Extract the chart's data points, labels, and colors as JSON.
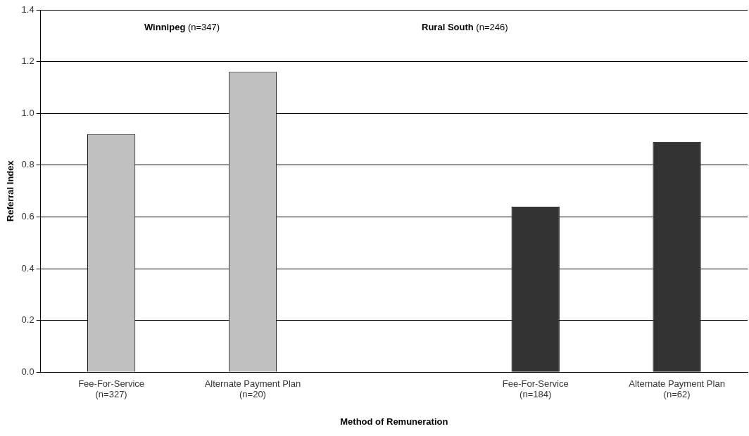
{
  "chart_data": {
    "type": "bar",
    "xlabel": "Method of Remuneration",
    "ylabel": "Referral Index",
    "categories": [
      "Fee-For-Service\n(n=327)",
      "Alternate Payment Plan\n(n=20)",
      null,
      "Fee-For-Service\n(n=184)",
      "Alternate Payment Plan\n(n=62)"
    ],
    "values": [
      0.92,
      1.16,
      null,
      0.64,
      0.89
    ],
    "colors": [
      "#c0c0c0",
      "#c0c0c0",
      "#c0c0c0",
      "#333333",
      "#333333"
    ],
    "ylim": [
      0,
      1.4
    ],
    "yticks": [
      {
        "value": 0,
        "label": "0.0"
      },
      {
        "value": 0.2,
        "label": "0.2"
      },
      {
        "value": 0.4,
        "label": "0.4"
      },
      {
        "value": 0.6,
        "label": "0.6"
      },
      {
        "value": 0.8,
        "label": "0.8"
      },
      {
        "value": 1,
        "label": "1.0"
      },
      {
        "value": 1.2,
        "label": "1.2"
      },
      {
        "value": 1.4,
        "label": "1.4"
      }
    ],
    "grid": "y",
    "legend": false,
    "annotations": [
      "Winnipeg (n=347)",
      "Rural South (n=246)"
    ]
  }
}
